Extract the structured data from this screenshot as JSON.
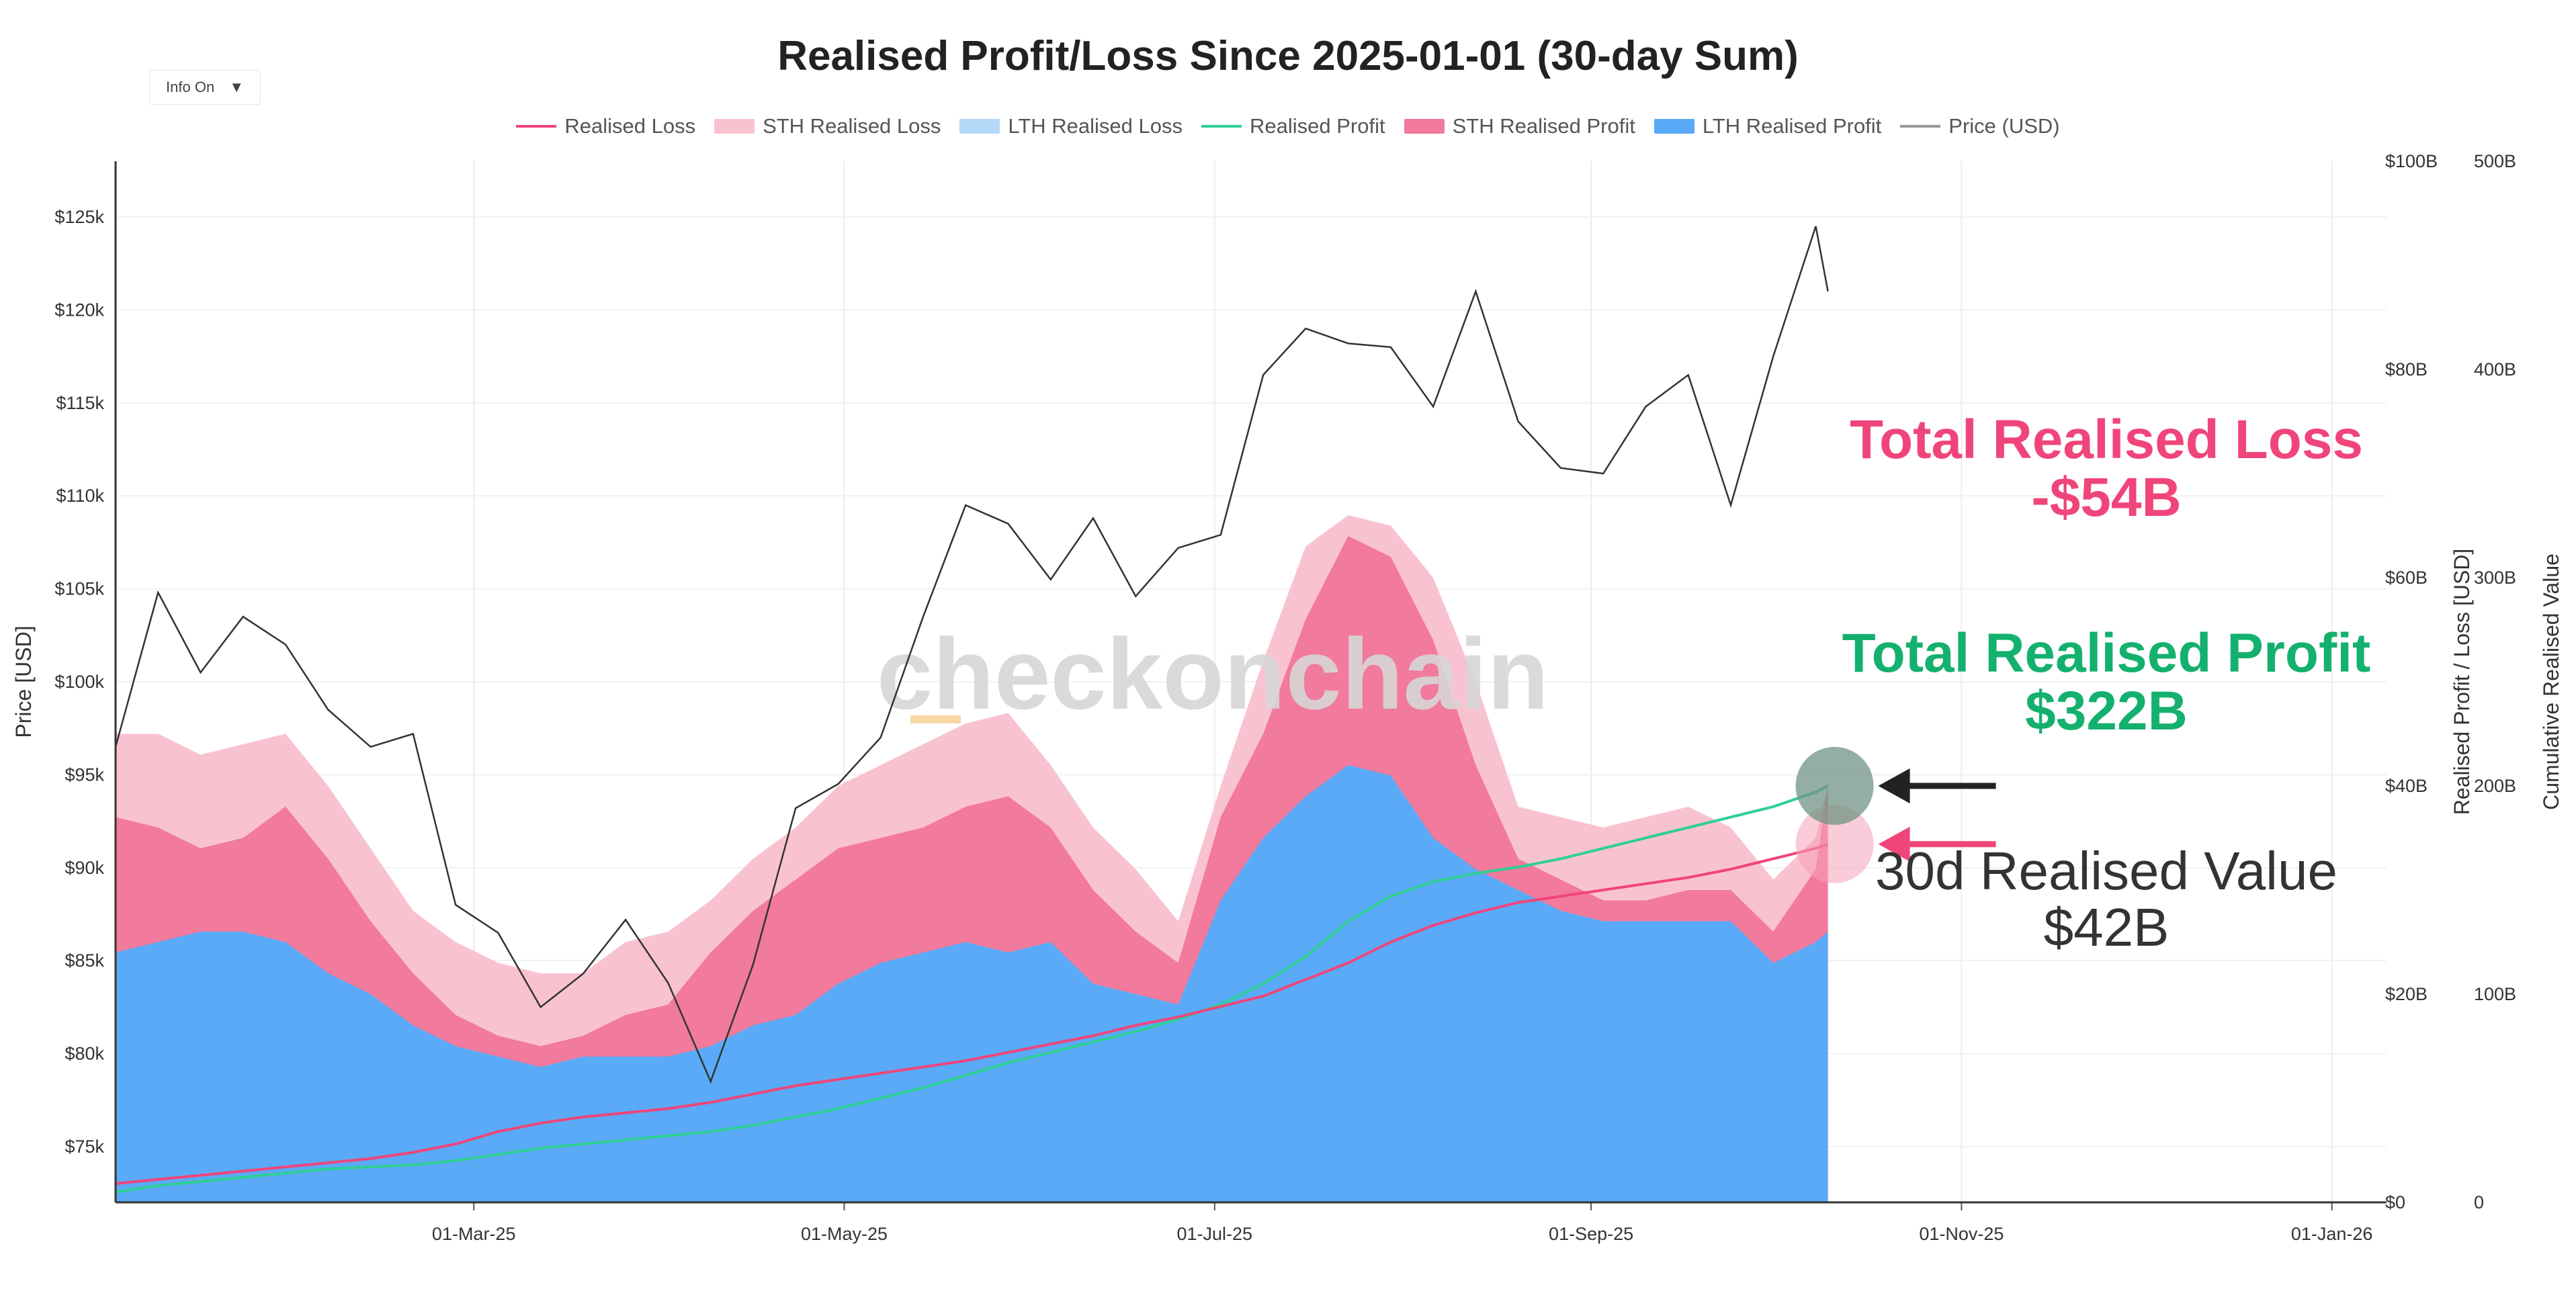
{
  "header": {
    "title": "Realised Profit/Loss Since 2025-01-01 (30-day Sum)",
    "info_label": "Info On",
    "info_caret": "▼"
  },
  "legend": [
    {
      "label": "Realised Loss",
      "color": "#f0457a",
      "kind": "line"
    },
    {
      "label": "STH Realised Loss",
      "color": "#f9c2d1",
      "kind": "area"
    },
    {
      "label": "LTH Realised Loss",
      "color": "#b4d8f7",
      "kind": "area"
    },
    {
      "label": "Realised Profit",
      "color": "#2ecf94",
      "kind": "line"
    },
    {
      "label": "STH Realised Profit",
      "color": "#f27a9c",
      "kind": "area"
    },
    {
      "label": "LTH Realised Profit",
      "color": "#5aaaf7",
      "kind": "area"
    },
    {
      "label": "Price (USD)",
      "color": "#999999",
      "kind": "line"
    }
  ],
  "watermark": "checkonchain",
  "annotations": {
    "loss_title": "Total Realised Loss",
    "loss_value": "-$54B",
    "profit_title": "Total Realised Profit",
    "profit_value": "$322B",
    "value_title": "30d Realised Value",
    "value_value": "$42B"
  },
  "chart_data": {
    "type": "line",
    "title": "Realised Profit/Loss Since 2025-01-01 (30-day Sum)",
    "y_left_label": "Price [USD]",
    "y_right_label": "Realised Profit / Loss [USD]",
    "y_right2_label": "Cumulative Realised Value",
    "x_ticks": [
      "01-Mar-25",
      "01-May-25",
      "01-Jul-25",
      "01-Sep-25",
      "01-Nov-25",
      "01-Jan-26"
    ],
    "x_range": [
      "2025-01-01",
      "2026-01-10"
    ],
    "price_ticks": [
      "$75k",
      "$80k",
      "$85k",
      "$90k",
      "$95k",
      "$100k",
      "$105k",
      "$110k",
      "$115k",
      "$120k",
      "$125k"
    ],
    "price_range": [
      72000,
      128000
    ],
    "pl_ticks": [
      "$0",
      "$20B",
      "$40B",
      "$60B",
      "$80B",
      "$100B"
    ],
    "pl_range": [
      0,
      100
    ],
    "cum_ticks": [
      "0",
      "100B",
      "200B",
      "300B",
      "400B",
      "500B"
    ],
    "cum_range": [
      0,
      500
    ],
    "grid": true,
    "legend_position": "top",
    "dates": [
      "2025-01-01",
      "2025-01-08",
      "2025-01-15",
      "2025-01-22",
      "2025-01-29",
      "2025-02-05",
      "2025-02-12",
      "2025-02-19",
      "2025-02-26",
      "2025-03-05",
      "2025-03-12",
      "2025-03-19",
      "2025-03-26",
      "2025-04-02",
      "2025-04-09",
      "2025-04-16",
      "2025-04-23",
      "2025-04-30",
      "2025-05-07",
      "2025-05-14",
      "2025-05-21",
      "2025-05-28",
      "2025-06-04",
      "2025-06-11",
      "2025-06-18",
      "2025-06-25",
      "2025-07-02",
      "2025-07-09",
      "2025-07-16",
      "2025-07-23",
      "2025-07-30",
      "2025-08-06",
      "2025-08-13",
      "2025-08-20",
      "2025-08-27",
      "2025-09-03",
      "2025-09-10",
      "2025-09-17",
      "2025-09-24",
      "2025-10-01",
      "2025-10-08",
      "2025-10-10"
    ],
    "series": [
      {
        "name": "Price (USD)",
        "axis": "price",
        "values": [
          96500,
          104800,
          100500,
          103500,
          102000,
          98500,
          96500,
          97200,
          88000,
          86500,
          82500,
          84300,
          87200,
          83800,
          78500,
          84800,
          93200,
          94500,
          97000,
          103500,
          109500,
          108500,
          105500,
          108800,
          104600,
          107200,
          107900,
          116500,
          119000,
          118200,
          118000,
          114800,
          121000,
          114000,
          111500,
          111200,
          114800,
          116500,
          109500,
          117500,
          124500,
          121000
        ]
      },
      {
        "name": "Realised Loss",
        "axis": "cumulative",
        "values": [
          9,
          11,
          13,
          15,
          17,
          19,
          21,
          24,
          28,
          34,
          38,
          41,
          43,
          45,
          48,
          52,
          56,
          59,
          62,
          65,
          68,
          72,
          76,
          80,
          85,
          89,
          94,
          99,
          107,
          115,
          125,
          133,
          139,
          144,
          147,
          150,
          153,
          156,
          160,
          165,
          170,
          172
        ]
      },
      {
        "name": "Realised Profit",
        "axis": "cumulative",
        "values": [
          5,
          8,
          10,
          12,
          14,
          16,
          17,
          18,
          20,
          23,
          26,
          28,
          30,
          32,
          34,
          37,
          41,
          45,
          50,
          55,
          61,
          67,
          72,
          77,
          82,
          88,
          95,
          105,
          118,
          135,
          147,
          154,
          158,
          161,
          165,
          170,
          175,
          180,
          185,
          190,
          197,
          200
        ]
      },
      {
        "name": "LTH Realised Profit",
        "axis": "pl",
        "values": [
          24,
          25,
          26,
          26,
          25,
          22,
          20,
          17,
          15,
          14,
          13,
          14,
          14,
          14,
          15,
          17,
          18,
          21,
          23,
          24,
          25,
          24,
          25,
          21,
          20,
          19,
          29,
          35,
          39,
          42,
          41,
          35,
          32,
          30,
          28,
          27,
          27,
          27,
          27,
          23,
          25,
          26
        ]
      },
      {
        "name": "STH Realised Profit",
        "axis": "pl",
        "values": [
          37,
          36,
          34,
          35,
          38,
          33,
          27,
          22,
          18,
          16,
          15,
          16,
          18,
          19,
          24,
          28,
          31,
          34,
          35,
          36,
          38,
          39,
          36,
          30,
          26,
          23,
          37,
          45,
          56,
          64,
          62,
          54,
          42,
          33,
          31,
          29,
          29,
          30,
          30,
          26,
          32,
          40
        ]
      },
      {
        "name": "STH Realised Loss",
        "axis": "pl",
        "values": [
          45,
          45,
          43,
          44,
          45,
          40,
          34,
          28,
          25,
          23,
          22,
          22,
          25,
          26,
          29,
          33,
          36,
          40,
          42,
          44,
          46,
          47,
          42,
          36,
          32,
          27,
          40,
          52,
          63,
          66,
          65,
          60,
          50,
          38,
          37,
          36,
          37,
          38,
          36,
          31,
          35,
          40
        ]
      }
    ]
  }
}
